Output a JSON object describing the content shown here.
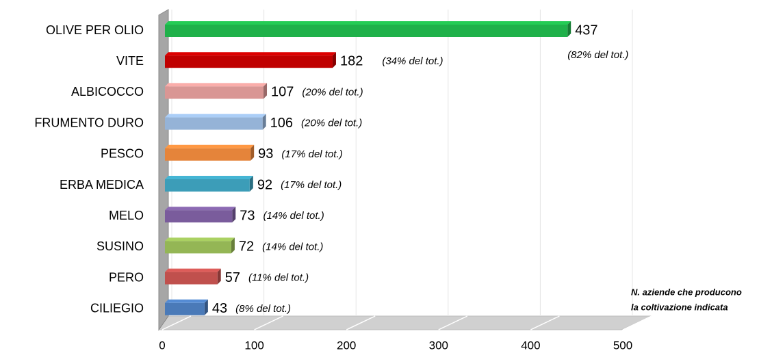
{
  "chart_data": {
    "type": "bar",
    "orientation": "horizontal",
    "categories": [
      "OLIVE PER OLIO",
      "VITE",
      "ALBICOCCO",
      "FRUMENTO DURO",
      "PESCO",
      "ERBA MEDICA",
      "MELO",
      "SUSINO",
      "PERO",
      "CILIEGIO"
    ],
    "values": [
      437,
      182,
      107,
      106,
      93,
      92,
      73,
      72,
      57,
      43
    ],
    "colors": [
      "#1fb14a",
      "#c00000",
      "#d99694",
      "#95b3d7",
      "#e5843a",
      "#3c9db8",
      "#7a5c9c",
      "#94b655",
      "#c0504d",
      "#4a7ab8"
    ],
    "annotations": [
      "(82% del tot.)",
      "(34% del tot.)",
      "(20% del tot.)",
      "(20% del tot.)",
      "(17% del tot.)",
      "(17% del tot.)",
      "(14% del tot.)",
      "(14% del tot.)",
      "(11% del tot.)",
      "(8% del tot.)"
    ],
    "note": [
      "N. aziende  che producono",
      "la coltivazione indicata"
    ],
    "xlim": [
      0,
      500
    ],
    "xticks": [
      0,
      100,
      200,
      300,
      400,
      500
    ],
    "grid": true
  }
}
